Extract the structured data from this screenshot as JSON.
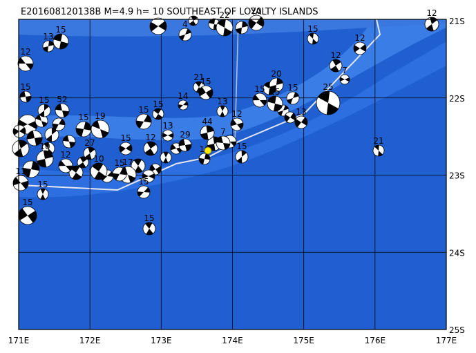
{
  "header": {
    "title": "E201608120138B M=4.9 h= 10 SOUTHEAST OF LOYALTY ISLANDS"
  },
  "axes": {
    "lon_labels": [
      "171E",
      "172E",
      "173E",
      "174E",
      "175E",
      "176E",
      "177E"
    ],
    "lat_labels": [
      "21S",
      "22S",
      "23S",
      "24S",
      "25S"
    ]
  },
  "events": [
    "12",
    "13",
    "15",
    "4",
    "22",
    "20",
    "15",
    "12",
    "12",
    "7",
    "12",
    "15",
    "15",
    "52",
    "15",
    "19",
    "15",
    "15",
    "14",
    "21",
    "15",
    "13",
    "12",
    "44",
    "15",
    "20",
    "15",
    "15",
    "25",
    "13",
    "21",
    "15",
    "12",
    "13",
    "27",
    "29",
    "15",
    "7",
    "16",
    "17",
    "15",
    "10",
    "15",
    "15",
    "15",
    "15",
    "11",
    "10",
    "12"
  ]
}
